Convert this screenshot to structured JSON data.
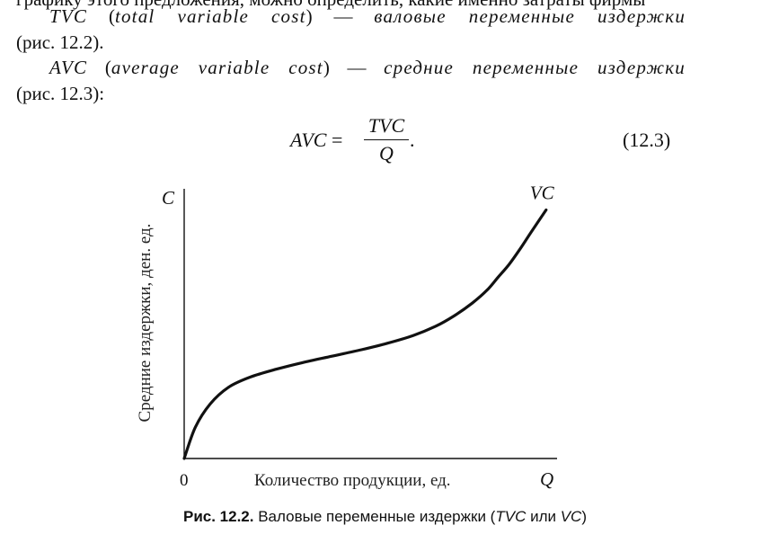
{
  "text": {
    "line0": "графику этого предложения, можно определить, какие именно затраты фирмы",
    "tvc_abbr": "TVC",
    "tvc_paren_open": "(",
    "tvc_full": "total variable cost",
    "tvc_paren_close": ")",
    "tvc_dash": "—",
    "tvc_def": "валовые переменные издержки",
    "line2": "(рис. 12.2).",
    "avc_abbr": "AVC",
    "avc_paren_open": "(",
    "avc_full": "average variable cost",
    "avc_paren_close": ")",
    "avc_dash": "—",
    "avc_def": "средние переменные издержки",
    "line4": "(рис. 12.3):"
  },
  "formula": {
    "lhs": "AVC",
    "equals": "=",
    "numerator": "TVC",
    "denominator": "Q",
    "period": ".",
    "number": "(12.3)"
  },
  "chart_data": {
    "type": "line",
    "y_axis_symbol": "C",
    "x_axis_symbol": "Q",
    "origin_label": "0",
    "xlabel": "Количество продукции, ед.",
    "ylabel": "Средние издержки, ден. ед.",
    "series": [
      {
        "name": "VC",
        "x": [
          0,
          0.3,
          0.7,
          1.2,
          1.8,
          2.5,
          3.2,
          4.0,
          4.8,
          5.5,
          6.2,
          6.8,
          7.3,
          7.8,
          8.2,
          8.5,
          8.8,
          9.1,
          9.4,
          9.8
        ],
        "y": [
          0,
          1.2,
          2.1,
          2.75,
          3.15,
          3.45,
          3.7,
          3.95,
          4.2,
          4.45,
          4.75,
          5.1,
          5.5,
          6.0,
          6.5,
          7.0,
          7.5,
          8.1,
          8.75,
          9.6
        ]
      }
    ],
    "xlim": [
      0,
      10
    ],
    "ylim": [
      0,
      10
    ],
    "grid": false,
    "legend": "none"
  },
  "caption": {
    "label": "Рис. 12.2.",
    "text_before": " Валовые переменные издержки (",
    "tvc": "TVC",
    "middle": " или ",
    "vc": "VC",
    "text_after": ")"
  }
}
